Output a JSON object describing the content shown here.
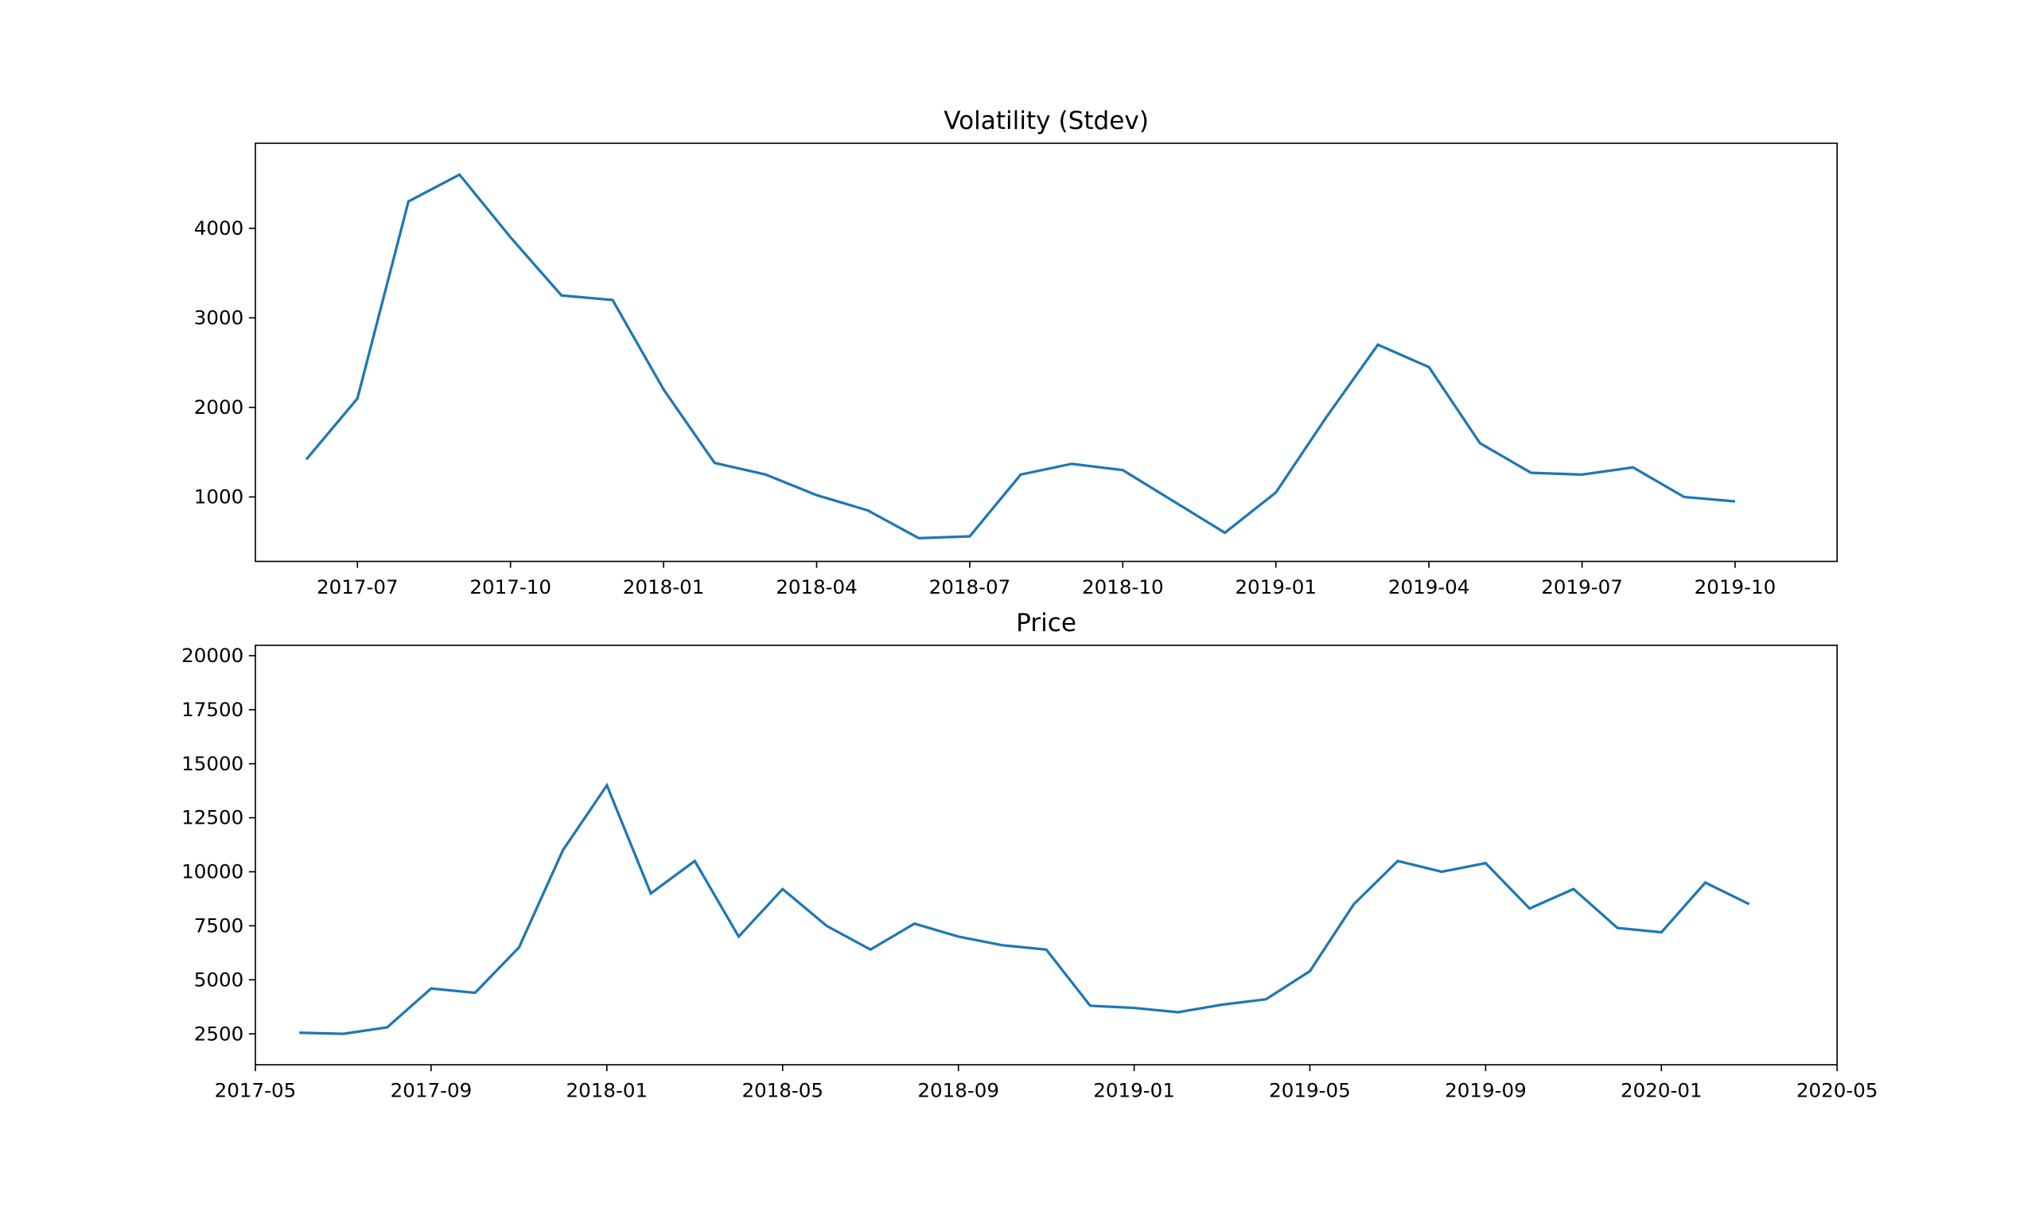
{
  "chart_data": [
    {
      "type": "line",
      "title": "Volatility (Stdev)",
      "color": "#1f77b4",
      "x": [
        "2017-06",
        "2017-07",
        "2017-08",
        "2017-09",
        "2017-10",
        "2017-11",
        "2017-12",
        "2018-01",
        "2018-02",
        "2018-03",
        "2018-04",
        "2018-05",
        "2018-06",
        "2018-07",
        "2018-08",
        "2018-09",
        "2018-10",
        "2018-11",
        "2018-12",
        "2019-01",
        "2019-02",
        "2019-03",
        "2019-04",
        "2019-05",
        "2019-06",
        "2019-07",
        "2019-08",
        "2019-09",
        "2019-10"
      ],
      "values": [
        1420,
        2100,
        4300,
        4600,
        3900,
        3250,
        3200,
        2200,
        1380,
        1250,
        1020,
        850,
        540,
        560,
        1250,
        1370,
        1300,
        950,
        600,
        1050,
        1900,
        2700,
        2450,
        1600,
        1270,
        1250,
        1330,
        1000,
        950
      ],
      "xlim": [
        "2017-05",
        "2019-12"
      ],
      "xticks": [
        "2017-07",
        "2017-10",
        "2018-01",
        "2018-04",
        "2018-07",
        "2018-10",
        "2019-01",
        "2019-04",
        "2019-07",
        "2019-10"
      ],
      "ylim": [
        280,
        4950
      ],
      "yticks": [
        1000,
        2000,
        3000,
        4000
      ]
    },
    {
      "type": "line",
      "title": "Price",
      "color": "#1f77b4",
      "x": [
        "2017-06",
        "2017-07",
        "2017-08",
        "2017-09",
        "2017-10",
        "2017-11",
        "2017-12",
        "2018-01",
        "2018-02",
        "2018-03",
        "2018-04",
        "2018-05",
        "2018-06",
        "2018-07",
        "2018-08",
        "2018-09",
        "2018-10",
        "2018-11",
        "2018-12",
        "2019-01",
        "2019-02",
        "2019-03",
        "2019-04",
        "2019-05",
        "2019-06",
        "2019-07",
        "2019-08",
        "2019-09",
        "2019-10",
        "2019-11",
        "2019-12",
        "2020-01",
        "2020-02",
        "2020-03"
      ],
      "values": [
        2550,
        2500,
        2800,
        4600,
        4400,
        6500,
        11000,
        14000,
        9000,
        10500,
        7000,
        9200,
        7500,
        6400,
        7600,
        7000,
        6600,
        6400,
        3800,
        3700,
        3500,
        3850,
        4100,
        5400,
        8500,
        10500,
        10000,
        10400,
        8300,
        9200,
        7400,
        7200,
        9500,
        8500
      ],
      "xlim": [
        "2017-05",
        "2020-05"
      ],
      "xticks": [
        "2017-05",
        "2017-09",
        "2018-01",
        "2018-05",
        "2018-09",
        "2019-01",
        "2019-05",
        "2019-09",
        "2020-01",
        "2020-05"
      ],
      "ylim": [
        1070,
        20480
      ],
      "yticks": [
        2500,
        5000,
        7500,
        10000,
        12500,
        15000,
        17500,
        20000
      ]
    }
  ]
}
